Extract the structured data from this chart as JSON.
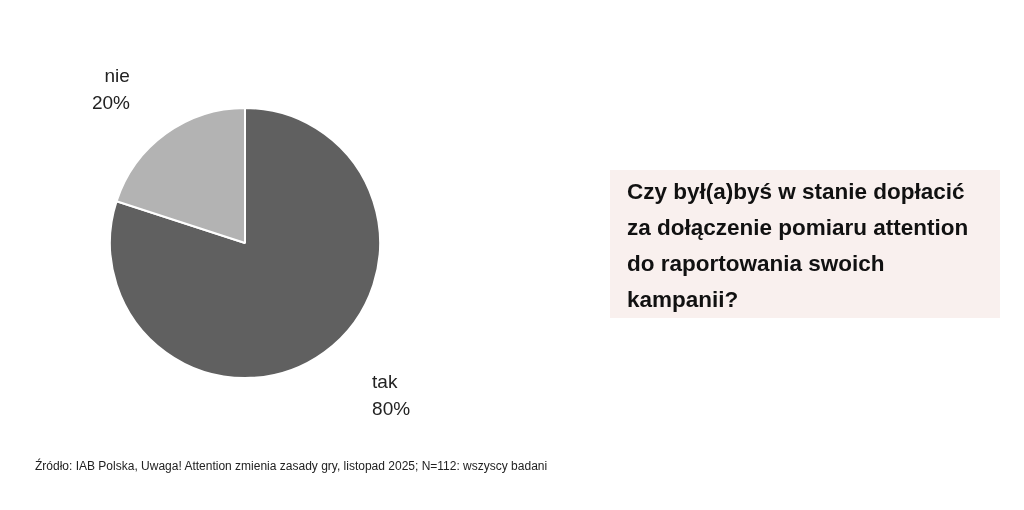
{
  "chart_data": {
    "type": "pie",
    "title": "Czy był(a)byś w stanie dopłacić za dołączenie pomiaru attention do raportowania swoich kampanii?",
    "categories": [
      "tak",
      "nie"
    ],
    "values": [
      80,
      20
    ],
    "colors": [
      "#606060",
      "#b3b3b3"
    ],
    "value_labels": [
      "80%",
      "20%"
    ],
    "legend": false,
    "annotations": [
      "Źródło: IAB Polska, Uwaga! Attention zmienia zasady gry, listopad 2025; N=112: wszyscy badani"
    ]
  }
}
